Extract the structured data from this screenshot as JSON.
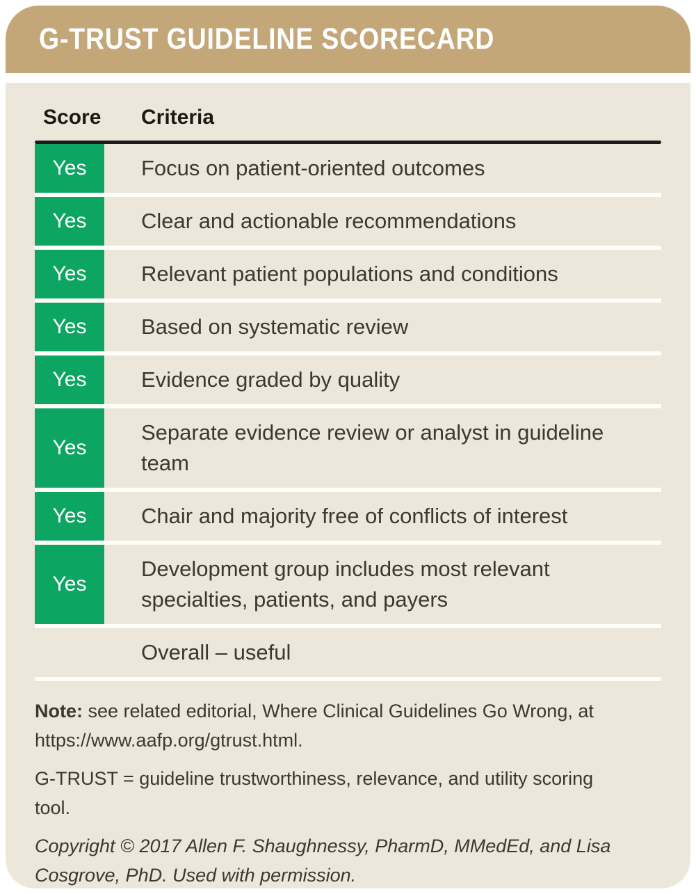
{
  "card": {
    "title": "G-TRUST GUIDELINE SCORECARD"
  },
  "table": {
    "columns": {
      "score": "Score",
      "criteria": "Criteria"
    },
    "rows": [
      {
        "score": "Yes",
        "criteria": "Focus on patient-oriented outcomes"
      },
      {
        "score": "Yes",
        "criteria": "Clear and actionable recommendations"
      },
      {
        "score": "Yes",
        "criteria": "Relevant patient populations and conditions"
      },
      {
        "score": "Yes",
        "criteria": "Based on systematic review"
      },
      {
        "score": "Yes",
        "criteria": "Evidence graded by quality"
      },
      {
        "score": "Yes",
        "criteria": "Separate evidence review or analyst in guideline\nteam"
      },
      {
        "score": "Yes",
        "criteria": "Chair and majority free of conflicts of interest"
      },
      {
        "score": "Yes",
        "criteria": "Development group includes most relevant\nspecialties, patients, and payers"
      },
      {
        "score": "",
        "criteria": "Overall – useful"
      }
    ]
  },
  "footnotes": {
    "note_label": "Note:",
    "note_text": " see related editorial, Where Clinical Guidelines Go Wrong, at\nhttps://www.aafp.org/gtrust.html.",
    "abbreviation": "G-TRUST = guideline trustworthiness, relevance, and utility scoring\ntool.",
    "copyright": "Copyright © 2017 Allen F. Shaughnessy, PharmD, MMedEd, and Lisa\nCosgrove, PhD. Used with permission."
  },
  "colors": {
    "header_bg": "#c4a778",
    "body_bg": "#ede7db",
    "badge_green": "#0da562",
    "text_dark": "#3a3831",
    "rule_black": "#1c1b19"
  }
}
